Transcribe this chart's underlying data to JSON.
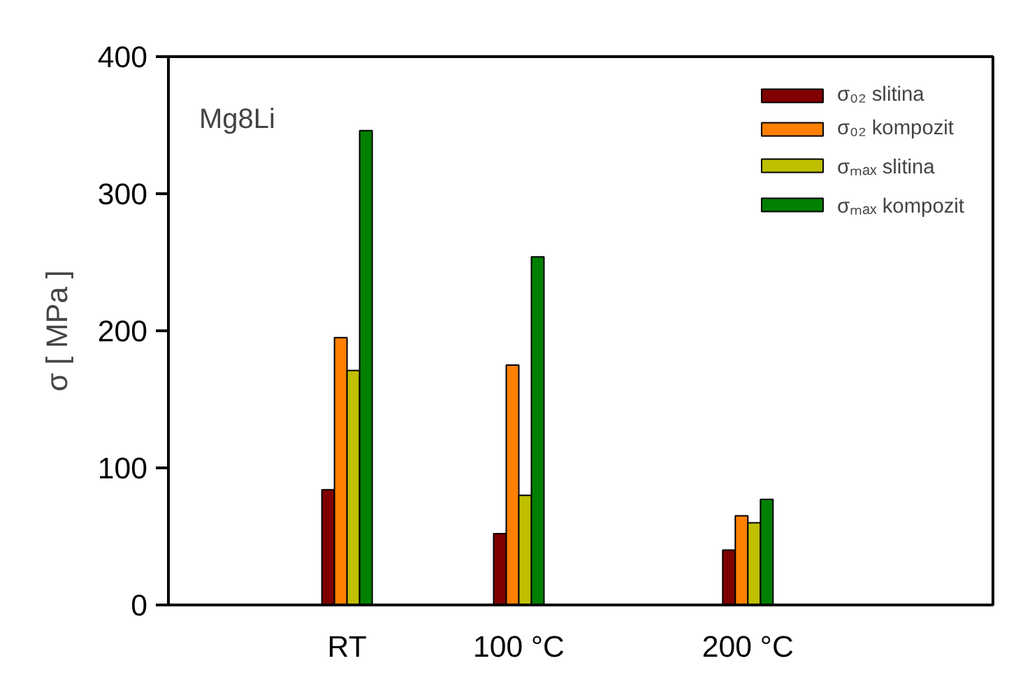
{
  "chart_data": {
    "type": "bar",
    "ylabel": "σ [ MPa ]",
    "x": [
      25,
      100,
      200
    ],
    "xlim": [
      -53,
      307
    ],
    "xticks": [
      {
        "value": 25,
        "label": "RT"
      },
      {
        "value": 100,
        "label": "100 °C"
      },
      {
        "value": 200,
        "label": "200 °C"
      }
    ],
    "ylim": [
      0,
      400
    ],
    "yticks": [
      0,
      100,
      200,
      300,
      400
    ],
    "grid": false,
    "legend": "top right",
    "annotations": [
      "Mg8Li"
    ],
    "series": [
      {
        "name": "σ₀₂ slitina",
        "color": "#800000",
        "values": [
          84,
          52,
          40
        ]
      },
      {
        "name": "σ₀₂ kompozit",
        "color": "#ff8000",
        "values": [
          195,
          175,
          65
        ]
      },
      {
        "name": "σₘₐₓ slitina",
        "color": "#c0c000",
        "values": [
          171,
          80,
          60
        ]
      },
      {
        "name": "σₘₐₓ kompozit",
        "color": "#008000",
        "values": [
          346,
          254,
          77
        ]
      }
    ]
  }
}
